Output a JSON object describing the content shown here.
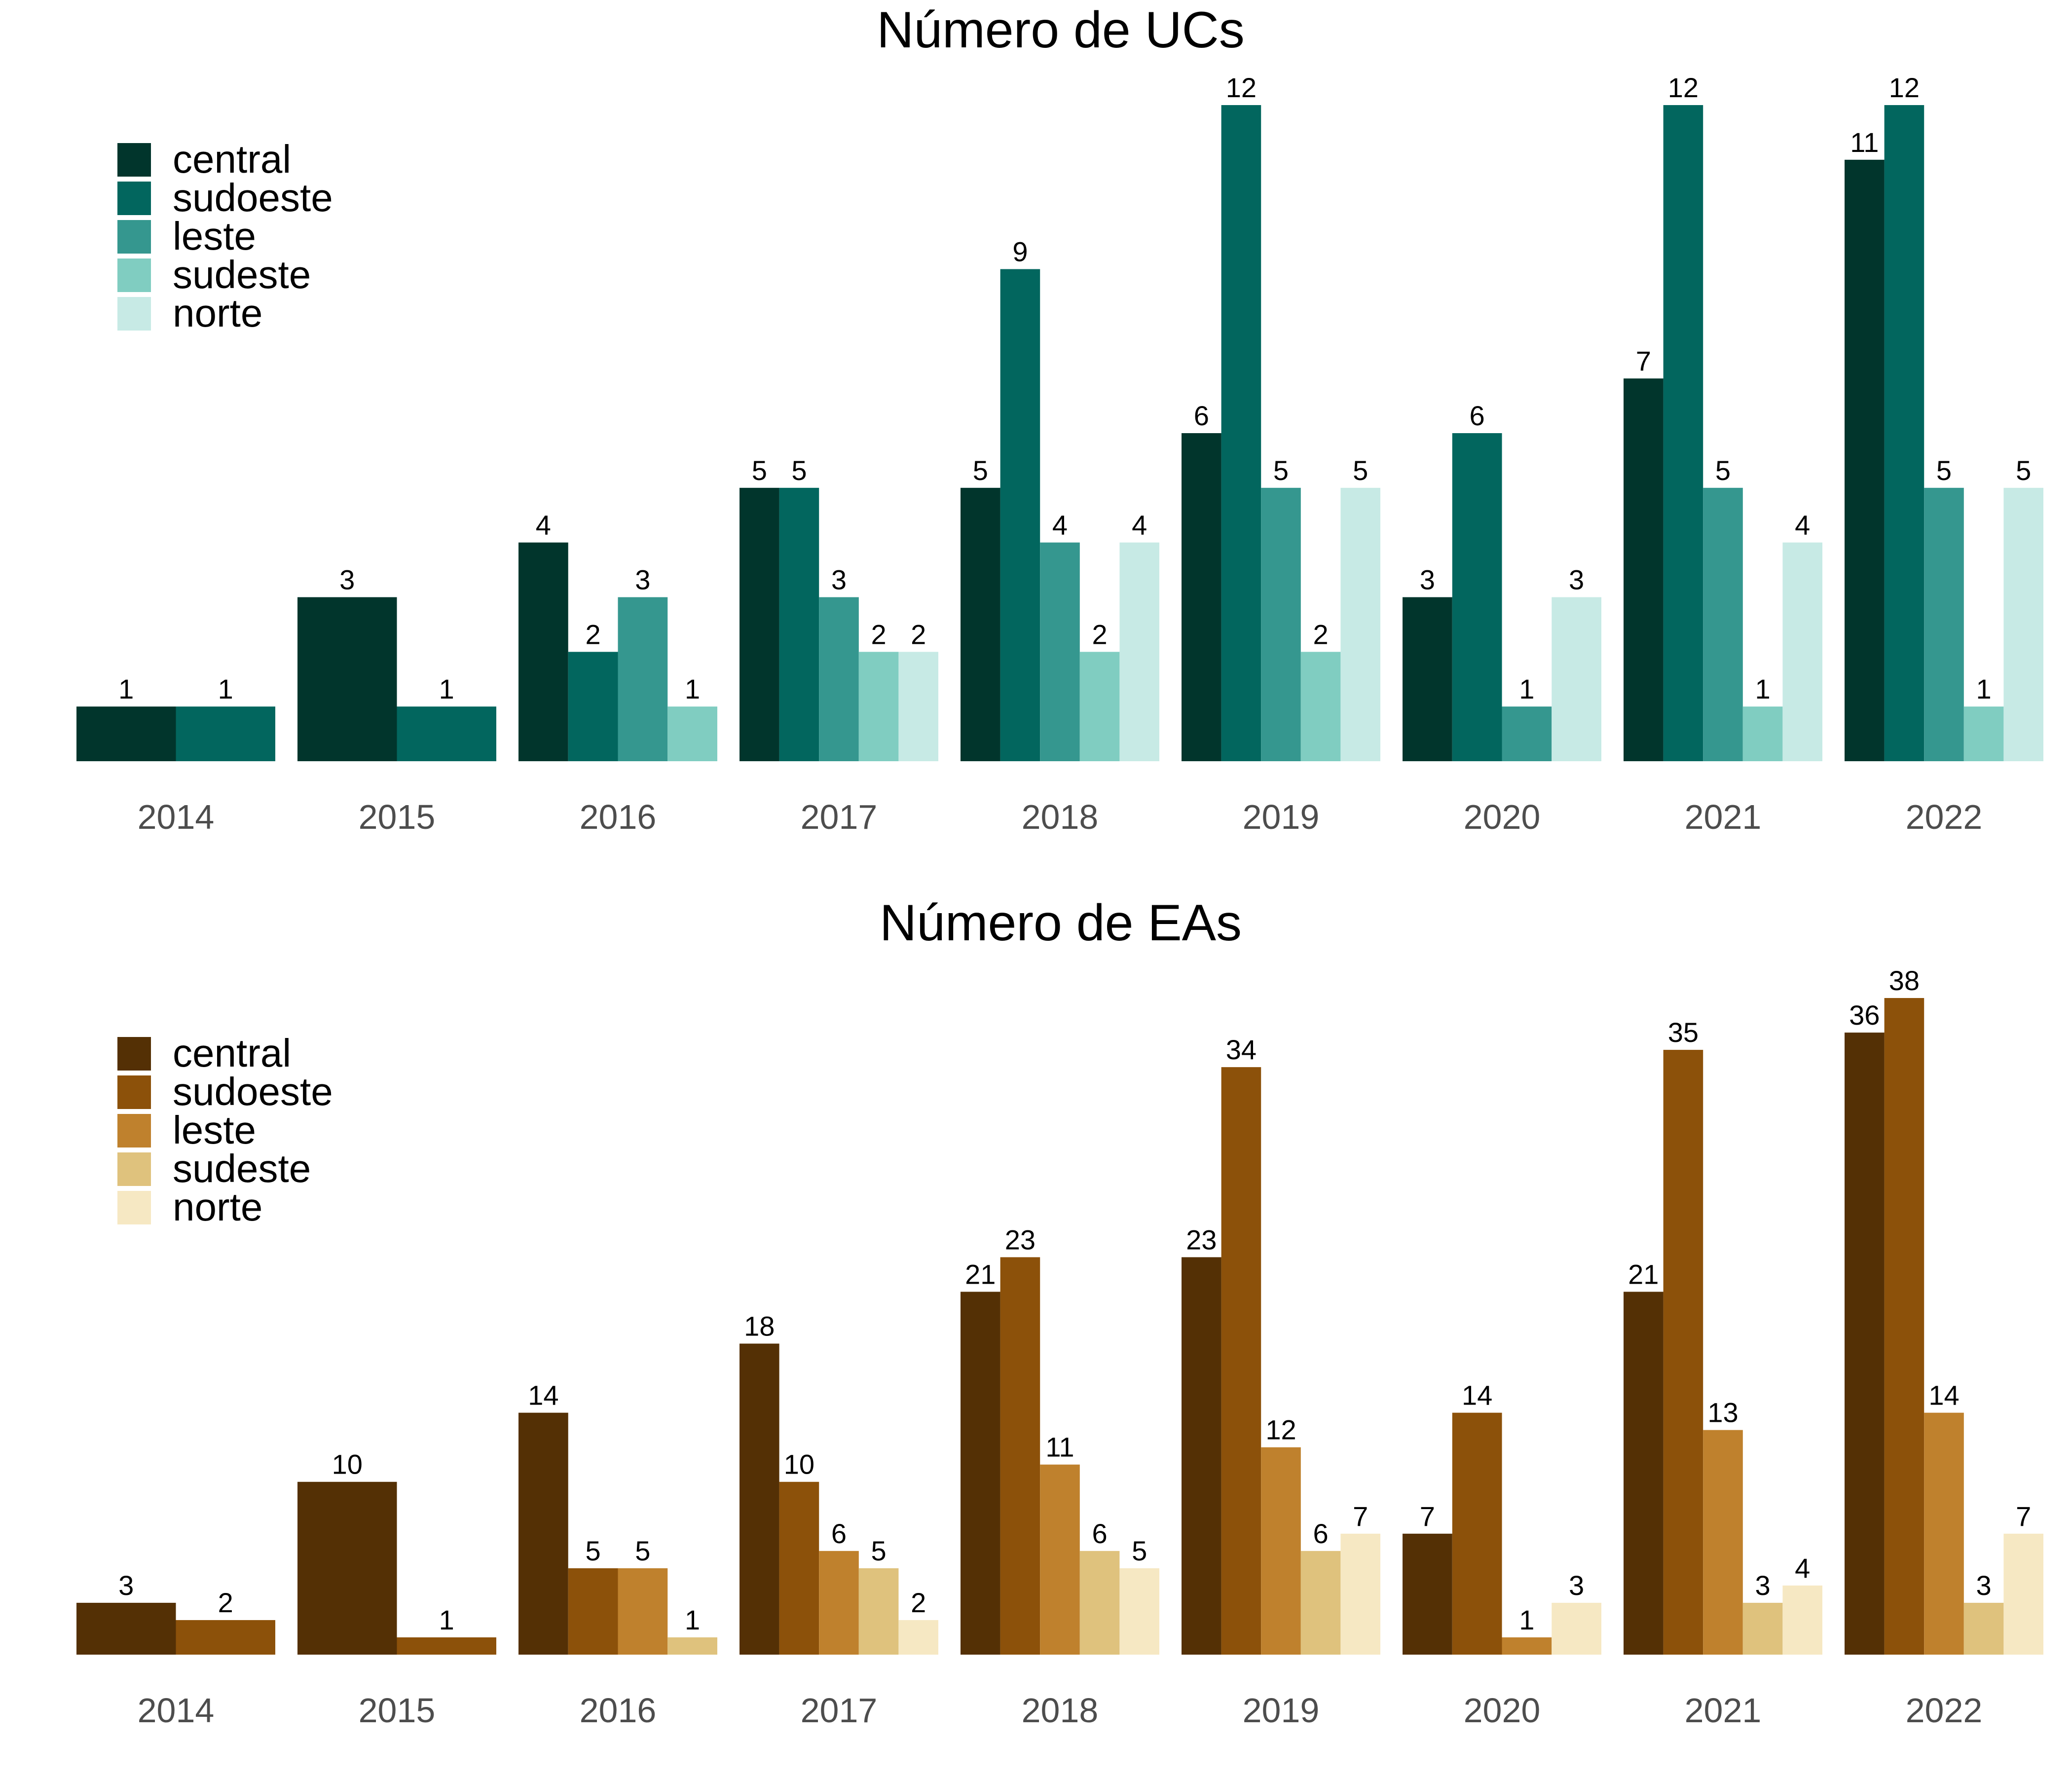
{
  "chart_data": [
    {
      "type": "bar",
      "title": "Número de UCs",
      "xlabel": "",
      "ylabel": "",
      "ylim": [
        0,
        12
      ],
      "grid": false,
      "legend": "top-left",
      "categories": [
        "2014",
        "2015",
        "2016",
        "2017",
        "2018",
        "2019",
        "2020",
        "2021",
        "2022"
      ],
      "series": [
        {
          "name": "central",
          "color": "#01352c",
          "values": [
            1,
            3,
            4,
            5,
            5,
            6,
            3,
            7,
            11
          ]
        },
        {
          "name": "sudoeste",
          "color": "#02665e",
          "values": [
            1,
            1,
            2,
            5,
            9,
            12,
            6,
            12,
            12
          ]
        },
        {
          "name": "leste",
          "color": "#35978f",
          "values": [
            null,
            null,
            3,
            3,
            4,
            5,
            1,
            5,
            5
          ]
        },
        {
          "name": "sudeste",
          "color": "#80cdc1",
          "values": [
            null,
            null,
            1,
            2,
            2,
            2,
            null,
            1,
            1
          ]
        },
        {
          "name": "norte",
          "color": "#c7eae5",
          "values": [
            null,
            null,
            null,
            2,
            4,
            5,
            3,
            4,
            5
          ]
        }
      ]
    },
    {
      "type": "bar",
      "title": "Número de EAs",
      "xlabel": "",
      "ylabel": "",
      "ylim": [
        0,
        38
      ],
      "grid": false,
      "legend": "top-left",
      "categories": [
        "2014",
        "2015",
        "2016",
        "2017",
        "2018",
        "2019",
        "2020",
        "2021",
        "2022"
      ],
      "series": [
        {
          "name": "central",
          "color": "#543005",
          "values": [
            3,
            10,
            14,
            18,
            21,
            23,
            7,
            21,
            36
          ]
        },
        {
          "name": "sudoeste",
          "color": "#8c510a",
          "values": [
            2,
            1,
            5,
            10,
            23,
            34,
            14,
            35,
            38
          ]
        },
        {
          "name": "leste",
          "color": "#bf812d",
          "values": [
            null,
            null,
            5,
            6,
            11,
            12,
            1,
            13,
            14
          ]
        },
        {
          "name": "sudeste",
          "color": "#dfc27d",
          "values": [
            null,
            null,
            1,
            5,
            6,
            6,
            null,
            3,
            3
          ]
        },
        {
          "name": "norte",
          "color": "#f6e8c3",
          "values": [
            null,
            null,
            null,
            2,
            5,
            7,
            3,
            4,
            7
          ]
        }
      ]
    }
  ]
}
